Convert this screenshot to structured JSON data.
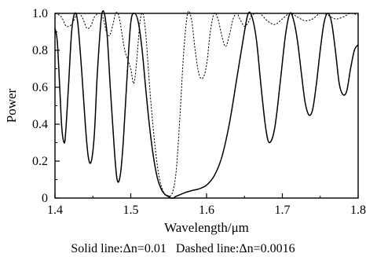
{
  "chart_data": {
    "type": "line",
    "xlabel": "Wavelength/μm",
    "ylabel": "Power",
    "xlim": [
      1.4,
      1.8
    ],
    "ylim": [
      0,
      1.0
    ],
    "x_ticks": [
      "1.4",
      "1.5",
      "1.6",
      "1.7",
      "1.8"
    ],
    "y_ticks": [
      "0",
      "0.2",
      "0.4",
      "0.6",
      "0.8",
      "1.0"
    ],
    "grid": false,
    "legend": "none",
    "caption": "Solid line:Δn=0.01   Dashed line:Δn=0.0016",
    "series": [
      {
        "style": "solid",
        "color": "#000000",
        "x": [
          1.4,
          1.403,
          1.406,
          1.409,
          1.412,
          1.414,
          1.418,
          1.422,
          1.426,
          1.43,
          1.435,
          1.44,
          1.444,
          1.448,
          1.452,
          1.456,
          1.462,
          1.468,
          1.473,
          1.478,
          1.482,
          1.486,
          1.49,
          1.495,
          1.5,
          1.505,
          1.51,
          1.515,
          1.52,
          1.525,
          1.53,
          1.535,
          1.54,
          1.545,
          1.55,
          1.553,
          1.556,
          1.56,
          1.566,
          1.572,
          1.58,
          1.59,
          1.6,
          1.61,
          1.62,
          1.63,
          1.64,
          1.65,
          1.655,
          1.66,
          1.666,
          1.672,
          1.678,
          1.683,
          1.69,
          1.697,
          1.704,
          1.71,
          1.715,
          1.72,
          1.725,
          1.73,
          1.735,
          1.74,
          1.745,
          1.75,
          1.755,
          1.76,
          1.765,
          1.77,
          1.775,
          1.78,
          1.785,
          1.79,
          1.795,
          1.8
        ],
        "y": [
          0.92,
          0.85,
          0.62,
          0.38,
          0.3,
          0.35,
          0.62,
          0.9,
          1.0,
          0.95,
          0.7,
          0.4,
          0.22,
          0.2,
          0.35,
          0.68,
          1.0,
          0.92,
          0.6,
          0.28,
          0.1,
          0.12,
          0.3,
          0.65,
          0.95,
          1.0,
          0.95,
          0.8,
          0.58,
          0.38,
          0.22,
          0.11,
          0.05,
          0.02,
          0.01,
          0.0,
          0.0,
          0.01,
          0.02,
          0.03,
          0.04,
          0.05,
          0.07,
          0.12,
          0.22,
          0.4,
          0.65,
          0.9,
          1.0,
          0.98,
          0.85,
          0.6,
          0.38,
          0.3,
          0.38,
          0.62,
          0.88,
          1.0,
          0.96,
          0.85,
          0.68,
          0.52,
          0.45,
          0.48,
          0.62,
          0.8,
          0.95,
          1.0,
          0.95,
          0.8,
          0.62,
          0.56,
          0.58,
          0.7,
          0.8,
          0.83
        ]
      },
      {
        "style": "dashed",
        "color": "#000000",
        "x": [
          1.4,
          1.406,
          1.41,
          1.415,
          1.422,
          1.428,
          1.432,
          1.437,
          1.442,
          1.447,
          1.452,
          1.458,
          1.463,
          1.468,
          1.472,
          1.476,
          1.48,
          1.484,
          1.488,
          1.492,
          1.496,
          1.5,
          1.504,
          1.508,
          1.512,
          1.516,
          1.52,
          1.524,
          1.528,
          1.532,
          1.536,
          1.54,
          1.545,
          1.55,
          1.555,
          1.56,
          1.565,
          1.57,
          1.575,
          1.58,
          1.585,
          1.59,
          1.595,
          1.6,
          1.605,
          1.61,
          1.615,
          1.62,
          1.625,
          1.63,
          1.635,
          1.64,
          1.645,
          1.65,
          1.655,
          1.66,
          1.67,
          1.68,
          1.69,
          1.7,
          1.71,
          1.72,
          1.73,
          1.74,
          1.75,
          1.76,
          1.77,
          1.78,
          1.79,
          1.8
        ],
        "y": [
          1.0,
          0.99,
          0.97,
          0.93,
          0.94,
          0.99,
          1.0,
          0.97,
          0.92,
          0.93,
          0.98,
          1.0,
          0.98,
          0.9,
          0.88,
          0.93,
          1.0,
          0.99,
          0.9,
          0.8,
          0.75,
          0.7,
          0.62,
          0.75,
          0.95,
          1.0,
          0.88,
          0.65,
          0.45,
          0.28,
          0.15,
          0.07,
          0.02,
          0.01,
          0.03,
          0.15,
          0.45,
          0.8,
          1.0,
          0.97,
          0.8,
          0.67,
          0.65,
          0.72,
          0.9,
          1.0,
          0.97,
          0.88,
          0.82,
          0.88,
          0.97,
          1.0,
          0.96,
          0.93,
          0.95,
          0.99,
          1.0,
          0.96,
          0.94,
          0.97,
          1.0,
          0.98,
          0.96,
          0.97,
          1.0,
          0.99,
          0.97,
          0.98,
          1.0,
          0.99
        ]
      }
    ]
  }
}
